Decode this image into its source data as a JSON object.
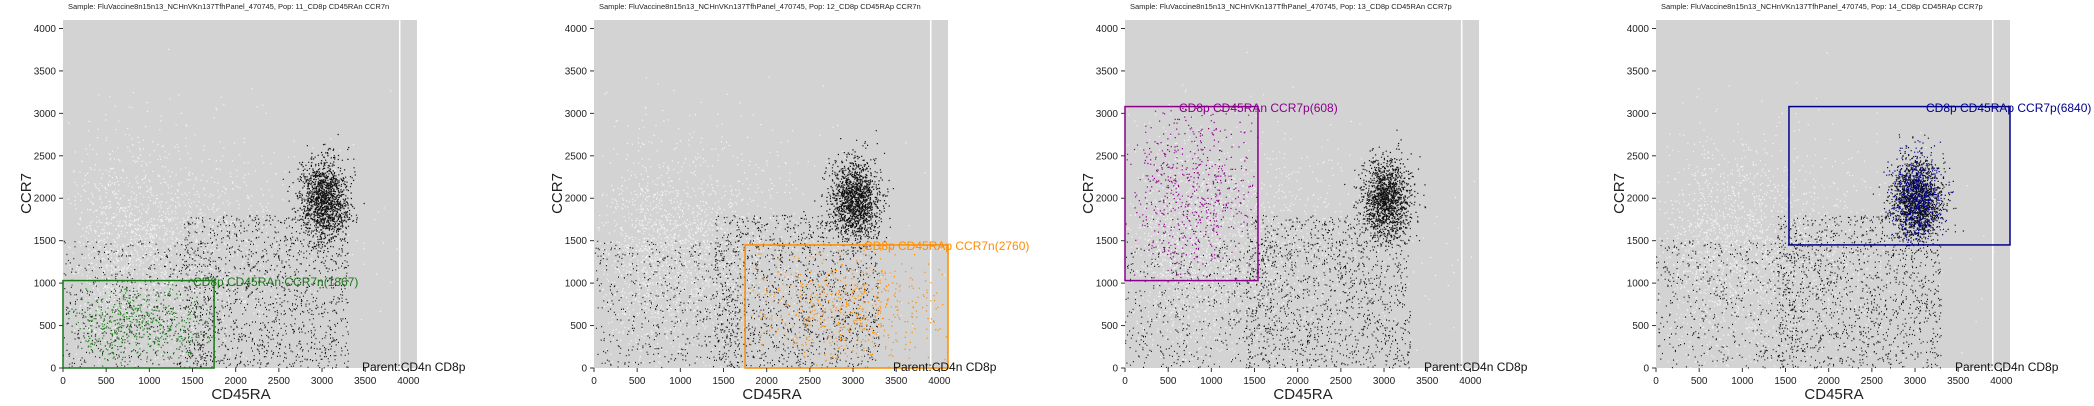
{
  "chart_data": [
    {
      "type": "scatter",
      "title": "Sample: FluVaccine8n15n13_NCHnVKn137TfhPanel_470745, Pop: 11_CD8p CD45RAn CCR7n",
      "xlabel": "CD45RA",
      "ylabel": "CCR7",
      "xlim": [
        0,
        4100
      ],
      "ylim": [
        0,
        4100
      ],
      "xticks": [
        0,
        500,
        1000,
        1500,
        2000,
        2500,
        3000,
        3500,
        4000
      ],
      "yticks": [
        0,
        500,
        1000,
        1500,
        2000,
        2500,
        3000,
        3500,
        4000
      ],
      "parent_label": "Parent:CD4n CD8p",
      "gate": {
        "label": "CD8p CD45RAn CCR7n(1867)",
        "x": [
          0,
          1750
        ],
        "y": [
          0,
          1030
        ],
        "color": "#1a7a1a"
      }
    },
    {
      "type": "scatter",
      "title": "Sample: FluVaccine8n15n13_NCHnVKn137TfhPanel_470745, Pop: 12_CD8p CD45RAp CCR7n",
      "xlabel": "CD45RA",
      "ylabel": "CCR7",
      "xlim": [
        0,
        4100
      ],
      "ylim": [
        0,
        4100
      ],
      "xticks": [
        0,
        500,
        1000,
        1500,
        2000,
        2500,
        3000,
        3500,
        4000
      ],
      "yticks": [
        0,
        500,
        1000,
        1500,
        2000,
        2500,
        3000,
        3500,
        4000
      ],
      "parent_label": "Parent:CD4n CD8p",
      "gate": {
        "label": "CD8p CD45RAp CCR7n(2760)",
        "x": [
          1750,
          4100
        ],
        "y": [
          0,
          1450
        ],
        "color": "#ff8c00"
      }
    },
    {
      "type": "scatter",
      "title": "Sample: FluVaccine8n15n13_NCHnVKn137TfhPanel_470745, Pop: 13_CD8p CD45RAn CCR7p",
      "xlabel": "CD45RA",
      "ylabel": "CCR7",
      "xlim": [
        0,
        4100
      ],
      "ylim": [
        0,
        4100
      ],
      "xticks": [
        0,
        500,
        1000,
        1500,
        2000,
        2500,
        3000,
        3500,
        4000
      ],
      "yticks": [
        0,
        500,
        1000,
        1500,
        2000,
        2500,
        3000,
        3500,
        4000
      ],
      "parent_label": "Parent:CD4n CD8p",
      "gate": {
        "label": "CD8p CD45RAn CCR7p(608)",
        "x": [
          0,
          1540
        ],
        "y": [
          1030,
          3080
        ],
        "color": "#8b008b"
      }
    },
    {
      "type": "scatter",
      "title": "Sample: FluVaccine8n15n13_NCHnVKn137TfhPanel_470745, Pop: 14_CD8p CD45RAp CCR7p",
      "xlabel": "CD45RA",
      "ylabel": "CCR7",
      "xlim": [
        0,
        4100
      ],
      "ylim": [
        0,
        4100
      ],
      "xticks": [
        0,
        500,
        1000,
        1500,
        2000,
        2500,
        3000,
        3500,
        4000
      ],
      "yticks": [
        0,
        500,
        1000,
        1500,
        2000,
        2500,
        3000,
        3500,
        4000
      ],
      "parent_label": "Parent:CD4n CD8p",
      "gate": {
        "label": "CD8p CD45RAp CCR7p(6840)",
        "x": [
          1540,
          4100
        ],
        "y": [
          1450,
          3080
        ],
        "color": "#00008b"
      }
    }
  ]
}
